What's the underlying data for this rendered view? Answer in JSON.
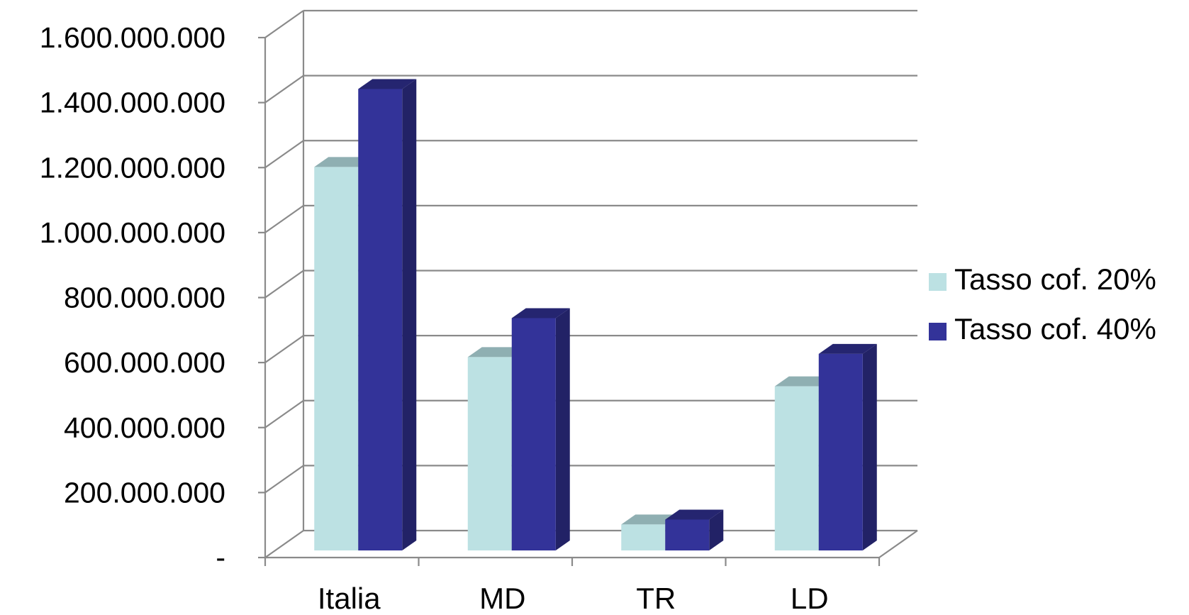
{
  "chart_data": {
    "type": "bar",
    "title": "",
    "xlabel": "",
    "ylabel": "",
    "categories": [
      "Italia",
      "MD",
      "TR",
      "LD"
    ],
    "series": [
      {
        "name": "Tasso cof. 20%",
        "color": "#BCE1E3",
        "top_color": "#8FAFB2",
        "values": [
          1180000000,
          595000000,
          80000000,
          505000000
        ]
      },
      {
        "name": "Tasso cof. 40%",
        "color": "#333399",
        "top_color": "#252570",
        "side_color": "#222266",
        "values": [
          1420000000,
          715000000,
          95000000,
          605000000
        ]
      }
    ],
    "ylim": [
      0,
      1600000000
    ],
    "y_ticks": [
      0,
      200000000,
      400000000,
      600000000,
      800000000,
      1000000000,
      1200000000,
      1400000000,
      1600000000
    ],
    "y_tick_labels": [
      "-",
      "200.000.000",
      "400.000.000",
      "600.000.000",
      "800.000.000",
      "1.000.000.000",
      "1.200.000.000",
      "1.400.000.000",
      "1.600.000.000"
    ],
    "grid": true,
    "legend_position": "right",
    "style": "3d-clustered-column"
  }
}
